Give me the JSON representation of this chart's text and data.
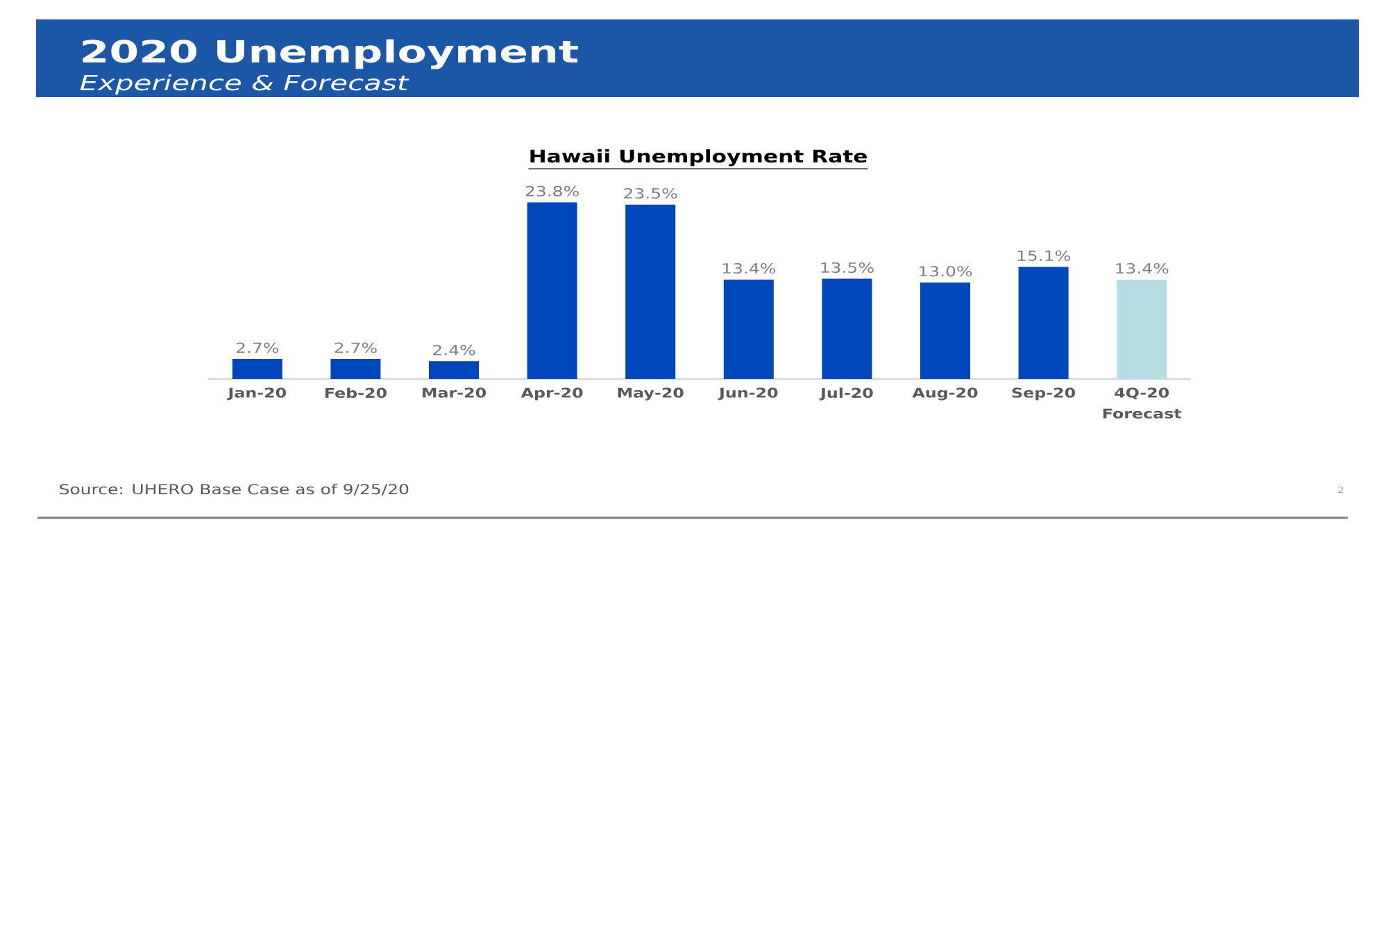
{
  "chart_data": {
    "type": "bar",
    "title": "2020 Unemployment",
    "subtitle": "Experience & Forecast",
    "categories": [
      "Jan-20",
      "Feb-20",
      "Mar-20",
      "Apr-20",
      "May-20",
      "Jun-20",
      "Jul-20",
      "Aug-20",
      "Sep-20",
      "4Q-20 Forecast"
    ],
    "values": [
      2.7,
      2.7,
      2.4,
      23.8,
      23.5,
      13.4,
      13.5,
      13.0,
      15.1,
      13.4
    ],
    "colors": [
      "#0047bb",
      "#0047bb",
      "#0047bb",
      "#0047bb",
      "#0047bb",
      "#0047bb",
      "#0047bb",
      "#0047bb",
      "#0047bb",
      "#b7dde3"
    ],
    "value_labels": [
      "2.7%",
      "2.7%",
      "2.4%",
      "23.8%",
      "23.5%",
      "13.4%",
      "13.5%",
      "13.0%",
      "15.1%",
      "13.4%"
    ],
    "annotations": [
      "Hawaii Unemployment Rate",
      "Source: UHERO Base Case as of 9/25/20",
      "2"
    ]
  }
}
